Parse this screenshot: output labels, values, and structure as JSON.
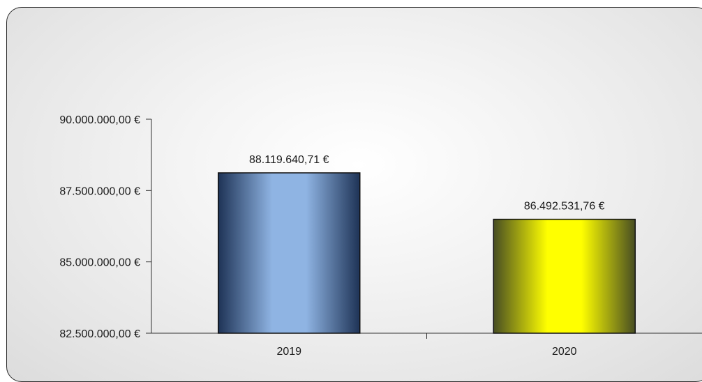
{
  "chart_data": {
    "type": "bar",
    "categories": [
      "2019",
      "2020"
    ],
    "values": [
      88119640.71,
      86492531.76
    ],
    "data_labels": [
      "88.119.640,71  €",
      "86.492.531,76  €"
    ],
    "ylim": [
      82500000,
      90000000
    ],
    "yticks": [
      82500000,
      85000000,
      87500000,
      90000000
    ],
    "ytick_labels": [
      "82.500.000,00  €",
      "85.000.000,00  €",
      "87.500.000,00  €",
      "90.000.000,00  €"
    ],
    "bar_colors": [
      {
        "edge": "#1e3356",
        "center": "#8fb4e3"
      },
      {
        "edge": "#474d22",
        "center": "#ffff00"
      }
    ],
    "grid": false,
    "legend": "none"
  }
}
